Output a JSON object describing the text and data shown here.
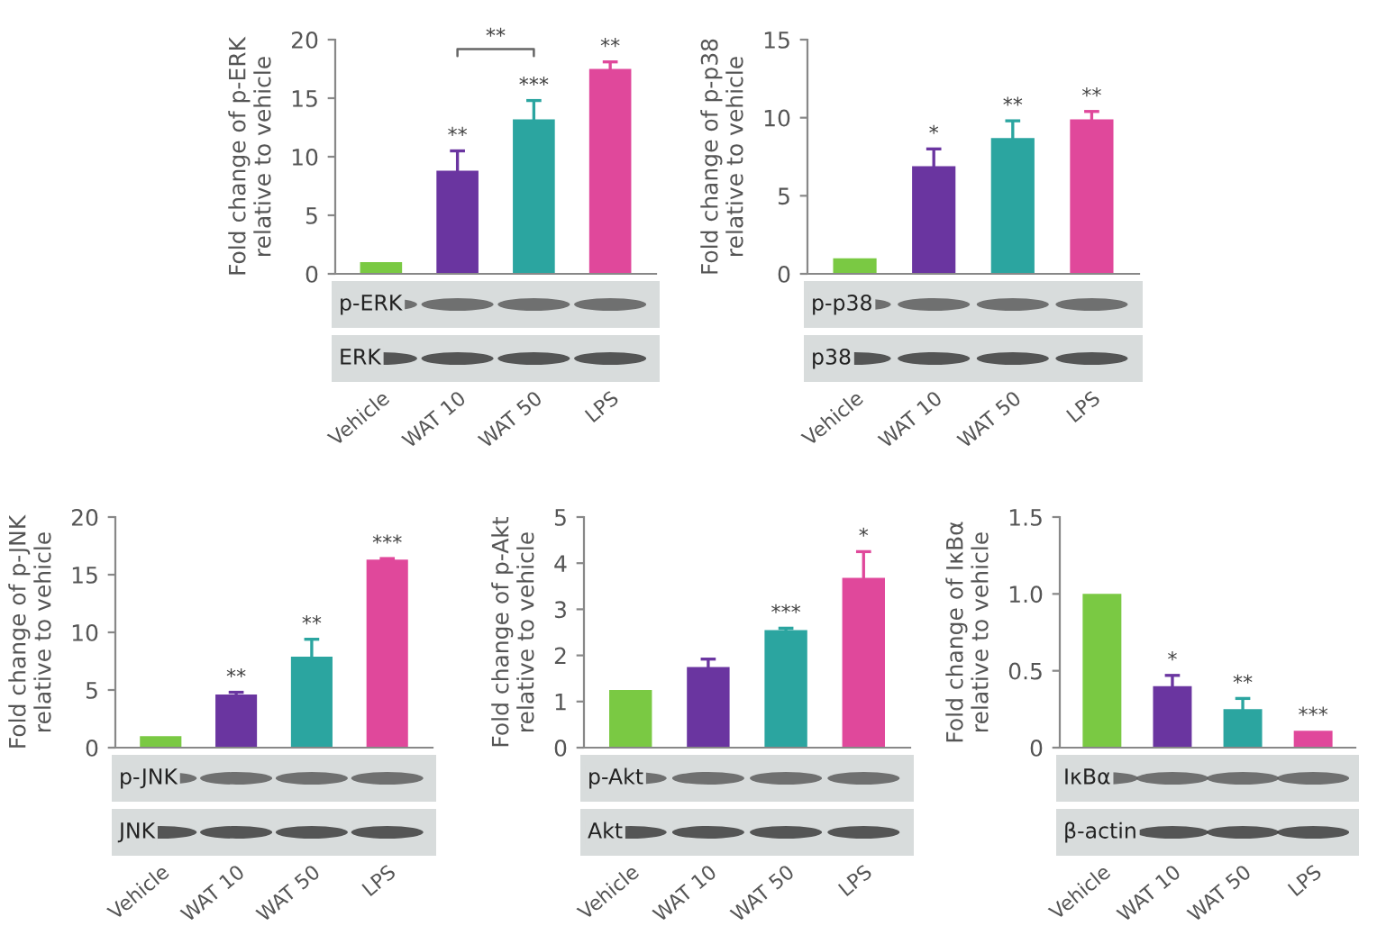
{
  "chart_data": [
    {
      "type": "bar",
      "ylabel": "Fold change of p-ERK\nrelative to vehicle",
      "categories": [
        "Vehicle",
        "WAT 10",
        "WAT 50",
        "LPS"
      ],
      "values": [
        1,
        8.8,
        13.2,
        17.5
      ],
      "errors": [
        null,
        1.7,
        1.6,
        0.6
      ],
      "colors": [
        "#7ac943",
        "#6a35a0",
        "#2ba5a0",
        "#e0489b"
      ],
      "ylim": [
        0,
        20
      ],
      "yticks": [
        0,
        5,
        10,
        15,
        20
      ],
      "annotations": [
        "p-ERK",
        "ERK",
        "**",
        {
          "text": "**",
          "x": "WAT 10",
          "y": 10.5
        },
        {
          "text": "***",
          "x": "WAT 50",
          "y": 14.8
        },
        {
          "text": "**",
          "x": "LPS",
          "y": 18.1
        }
      ]
    },
    {
      "type": "bar",
      "ylabel": "Fold change of p-p38\nrelative to vehicle",
      "categories": [
        "Vehicle",
        "WAT 10",
        "WAT 50",
        "LPS"
      ],
      "values": [
        1,
        6.9,
        8.7,
        9.9
      ],
      "errors": [
        null,
        1.1,
        1.1,
        0.5
      ],
      "colors": [
        "#7ac943",
        "#6a35a0",
        "#2ba5a0",
        "#e0489b"
      ],
      "ylim": [
        0,
        15
      ],
      "yticks": [
        0,
        5,
        10,
        15
      ],
      "annotations": [
        "p-p38",
        "p38",
        {
          "text": "*",
          "x": "WAT 10",
          "y": 8.0
        },
        {
          "text": "**",
          "x": "WAT 50",
          "y": 9.8
        },
        {
          "text": "**",
          "x": "LPS",
          "y": 10.4
        }
      ]
    },
    {
      "type": "bar",
      "ylabel": "Fold change of p-JNK\nrelative to vehicle",
      "categories": [
        "Vehicle",
        "WAT 10",
        "WAT 50",
        "LPS"
      ],
      "values": [
        1,
        4.6,
        7.9,
        16.3
      ],
      "errors": [
        null,
        0.2,
        1.5,
        0.1
      ],
      "colors": [
        "#7ac943",
        "#6a35a0",
        "#2ba5a0",
        "#e0489b"
      ],
      "ylim": [
        0,
        20
      ],
      "yticks": [
        0,
        5,
        10,
        15,
        20
      ],
      "annotations": [
        "p-JNK",
        "JNK",
        {
          "text": "**",
          "x": "WAT 10",
          "y": 4.8
        },
        {
          "text": "**",
          "x": "WAT 50",
          "y": 9.4
        },
        {
          "text": "***",
          "x": "LPS",
          "y": 16.4
        }
      ]
    },
    {
      "type": "bar",
      "ylabel": "Fold change of p-Akt\nrelative to vehicle",
      "categories": [
        "Vehicle",
        "WAT 10",
        "WAT 50",
        "LPS"
      ],
      "values": [
        1.25,
        1.75,
        2.55,
        3.68
      ],
      "errors": [
        null,
        0.17,
        0.04,
        0.57
      ],
      "colors": [
        "#7ac943",
        "#6a35a0",
        "#2ba5a0",
        "#e0489b"
      ],
      "ylim": [
        0,
        5
      ],
      "yticks": [
        0,
        1,
        2,
        3,
        4,
        5
      ],
      "annotations": [
        "p-Akt",
        "Akt",
        {
          "text": "***",
          "x": "WAT 50",
          "y": 2.59
        },
        {
          "text": "*",
          "x": "LPS",
          "y": 4.25
        }
      ]
    },
    {
      "type": "bar",
      "ylabel": "Fold change of IκBα\nrelative to vehicle",
      "categories": [
        "Vehicle",
        "WAT 10",
        "WAT 50",
        "LPS"
      ],
      "values": [
        1.0,
        0.4,
        0.25,
        0.11
      ],
      "errors": [
        null,
        0.07,
        0.07,
        null
      ],
      "colors": [
        "#7ac943",
        "#6a35a0",
        "#2ba5a0",
        "#e0489b"
      ],
      "ylim": [
        0,
        1.5
      ],
      "yticks": [
        0,
        0.5,
        {
          "value": 1,
          "label": "1.0"
        },
        1.5
      ],
      "annotations": [
        "IκBα",
        "β-actin",
        {
          "text": "*",
          "x": "WAT 10",
          "y": 0.47
        },
        {
          "text": "**",
          "x": "WAT 50",
          "y": 0.32
        },
        {
          "text": "***",
          "x": "LPS",
          "y": 0.11
        }
      ]
    }
  ]
}
